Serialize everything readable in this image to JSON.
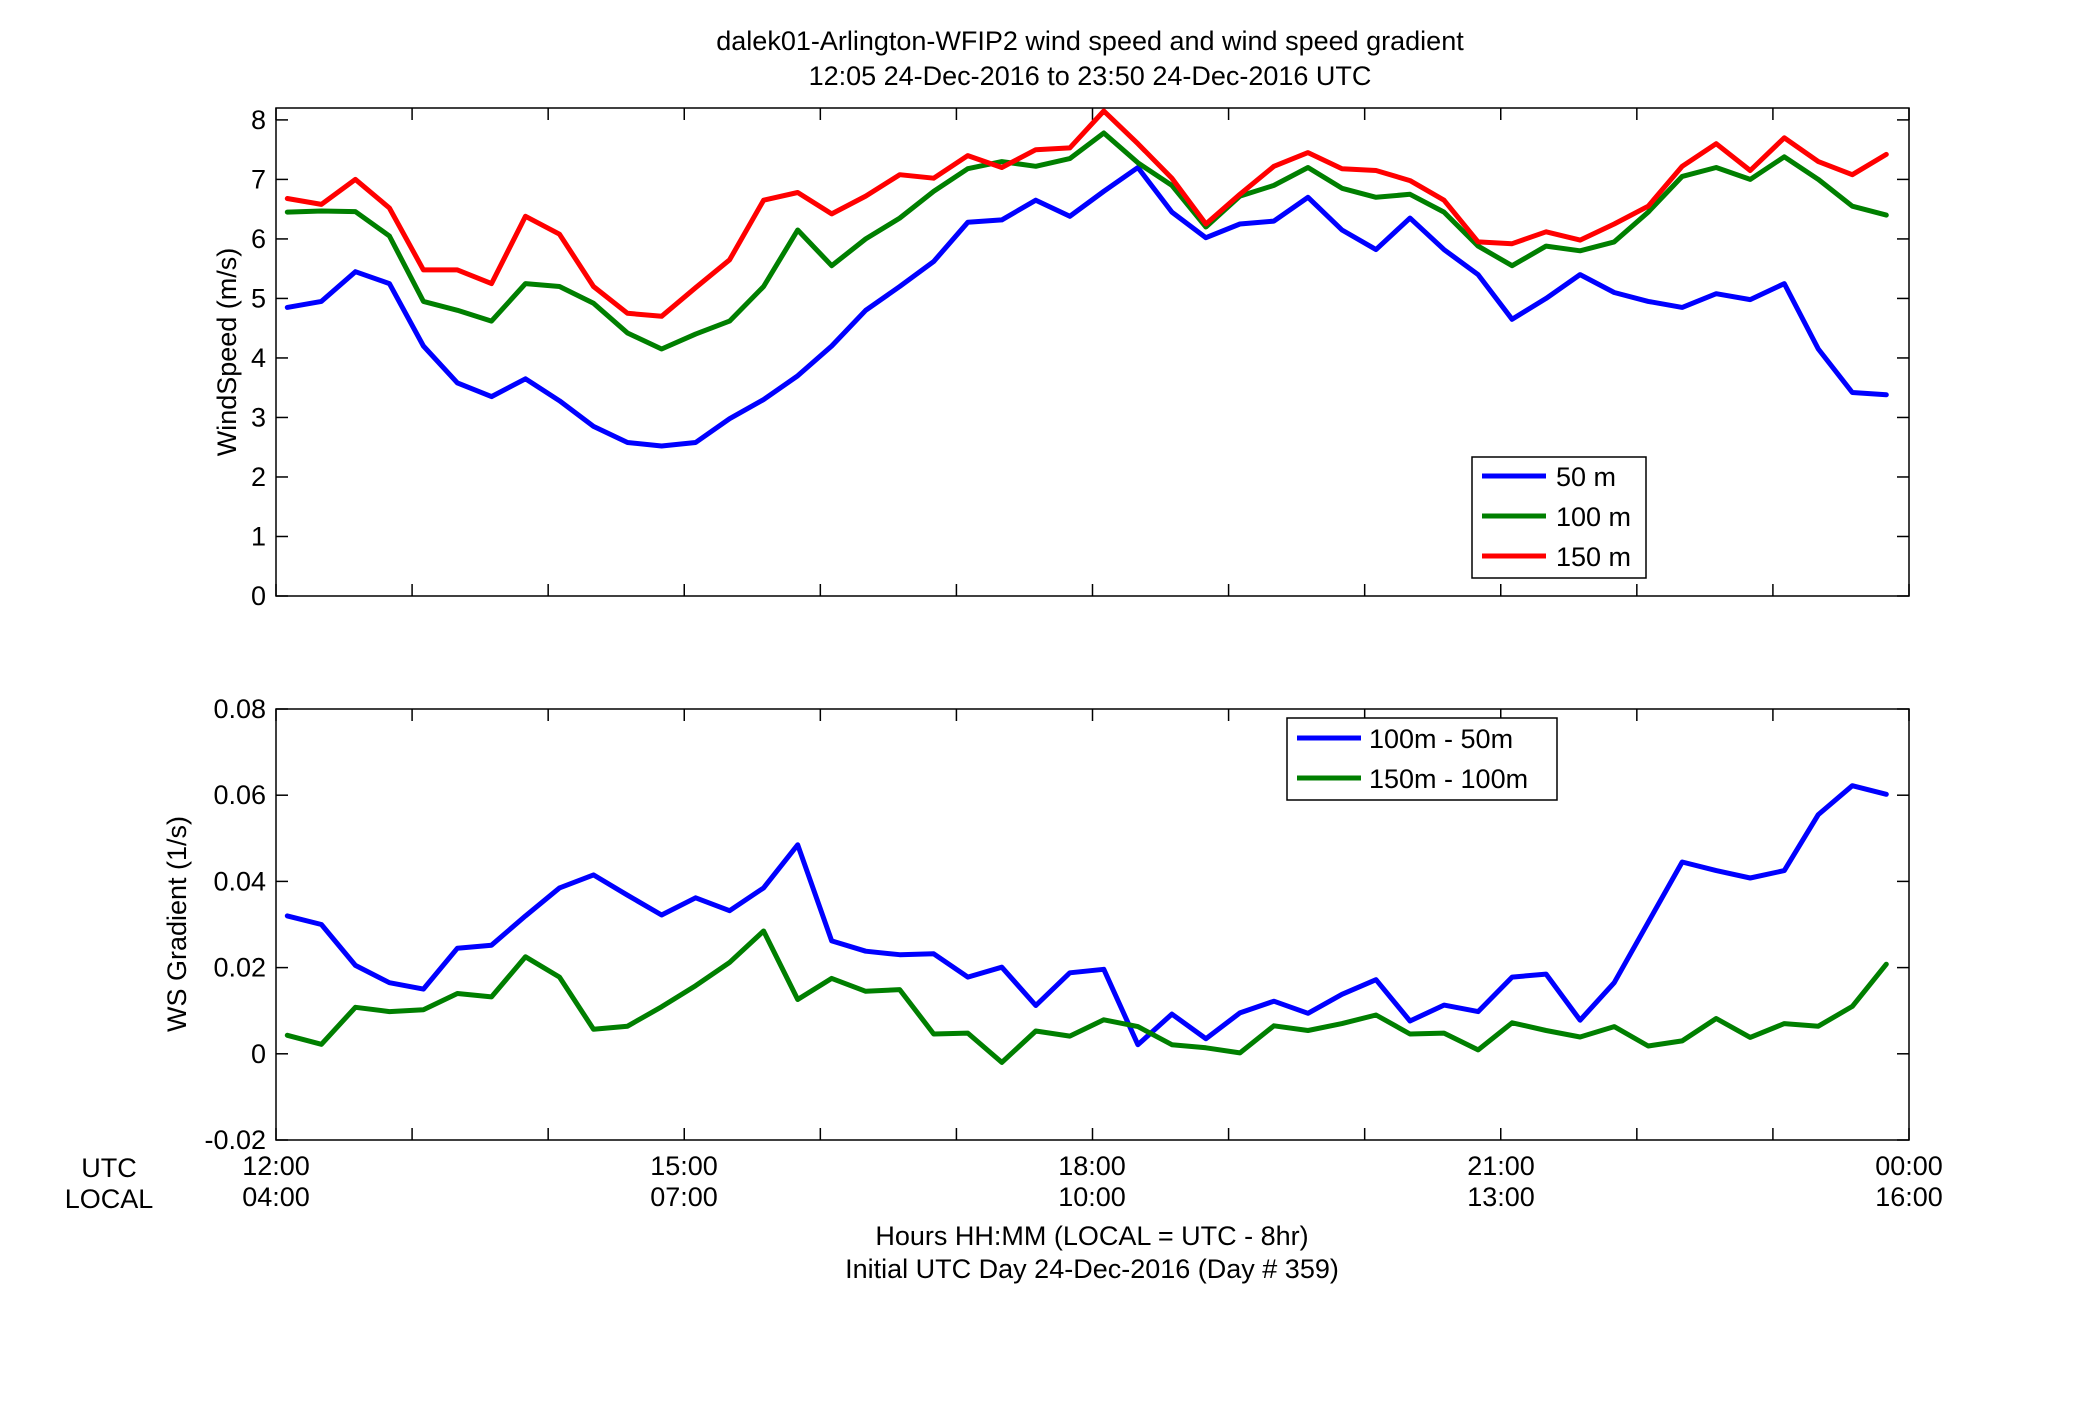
{
  "figure": {
    "title_line1": "dalek01-Arlington-WFIP2  wind speed and wind speed gradient",
    "title_line2": "12:05 24-Dec-2016 to 23:50 24-Dec-2016  UTC",
    "xlabel_line1": "Hours HH:MM  (LOCAL = UTC - 8hr)",
    "xlabel_line2": "Initial UTC Day 24-Dec-2016 (Day # 359)",
    "row_label_utc": "UTC",
    "row_label_local": "LOCAL",
    "utc_ticks": [
      "12:00",
      "15:00",
      "18:00",
      "21:00",
      "00:00"
    ],
    "local_ticks": [
      "04:00",
      "07:00",
      "10:00",
      "13:00",
      "16:00"
    ]
  },
  "chart_data": [
    {
      "type": "line",
      "ylabel": "WindSpeed (m/s)",
      "xlim": [
        12.0,
        24.0
      ],
      "ylim": [
        0,
        8.2
      ],
      "yticks": [
        0,
        1,
        2,
        3,
        4,
        5,
        6,
        7,
        8
      ],
      "xticks_hours": [
        12,
        13,
        14,
        15,
        16,
        17,
        18,
        19,
        20,
        21,
        22,
        23,
        24
      ],
      "grid": false,
      "legend_position": "lower-right",
      "x_time_utc": [
        "12:05",
        "12:20",
        "12:35",
        "12:50",
        "13:05",
        "13:20",
        "13:35",
        "13:50",
        "14:05",
        "14:20",
        "14:35",
        "14:50",
        "15:05",
        "15:20",
        "15:35",
        "15:50",
        "16:05",
        "16:20",
        "16:35",
        "16:50",
        "17:05",
        "17:20",
        "17:35",
        "17:50",
        "18:05",
        "18:20",
        "18:35",
        "18:50",
        "19:05",
        "19:20",
        "19:35",
        "19:50",
        "20:05",
        "20:20",
        "20:35",
        "20:50",
        "21:05",
        "21:20",
        "21:35",
        "21:50",
        "22:05",
        "22:20",
        "22:35",
        "22:50",
        "23:05",
        "23:20",
        "23:35",
        "23:50"
      ],
      "series": [
        {
          "name": "50 m",
          "color": "#0000ff",
          "values": [
            4.85,
            4.95,
            5.45,
            5.25,
            4.2,
            3.58,
            3.35,
            3.65,
            3.28,
            2.85,
            2.58,
            2.52,
            2.58,
            2.98,
            3.3,
            3.7,
            4.2,
            4.8,
            5.2,
            5.62,
            6.28,
            6.32,
            6.65,
            6.38,
            6.8,
            7.2,
            6.45,
            6.02,
            6.25,
            6.3,
            6.7,
            6.15,
            5.82,
            6.35,
            5.82,
            5.4,
            4.65,
            5.0,
            5.4,
            5.1,
            4.95,
            4.85,
            5.08,
            4.98,
            5.25,
            4.15,
            3.42,
            3.38
          ]
        },
        {
          "name": "100 m",
          "color": "#007f00",
          "values": [
            6.45,
            6.47,
            6.46,
            6.05,
            4.95,
            4.8,
            4.62,
            5.25,
            5.2,
            4.92,
            4.42,
            4.15,
            4.4,
            4.62,
            5.2,
            6.15,
            5.55,
            6.0,
            6.35,
            6.8,
            7.18,
            7.3,
            7.22,
            7.35,
            7.78,
            7.28,
            6.9,
            6.2,
            6.72,
            6.9,
            7.2,
            6.85,
            6.7,
            6.75,
            6.45,
            5.88,
            5.55,
            5.88,
            5.8,
            5.95,
            6.45,
            7.05,
            7.2,
            7.0,
            7.38,
            7.0,
            6.55,
            6.4
          ]
        },
        {
          "name": "150 m",
          "color": "#ff0000",
          "values": [
            6.68,
            6.58,
            7.0,
            6.52,
            5.48,
            5.48,
            5.25,
            6.38,
            6.08,
            5.2,
            4.75,
            4.7,
            5.18,
            5.65,
            6.65,
            6.78,
            6.42,
            6.72,
            7.08,
            7.02,
            7.4,
            7.2,
            7.5,
            7.53,
            8.15,
            7.6,
            7.02,
            6.25,
            6.75,
            7.22,
            7.45,
            7.18,
            7.15,
            6.98,
            6.65,
            5.95,
            5.92,
            6.12,
            5.98,
            6.25,
            6.55,
            7.22,
            7.6,
            7.15,
            7.7,
            7.3,
            7.08,
            7.42
          ]
        }
      ]
    },
    {
      "type": "line",
      "ylabel": "WS Gradient (1/s)",
      "xlim": [
        12.0,
        24.0
      ],
      "ylim": [
        -0.02,
        0.08
      ],
      "yticks": [
        -0.02,
        0,
        0.02,
        0.04,
        0.06,
        0.08
      ],
      "ytick_labels": [
        "-0.02",
        "0",
        "0.02",
        "0.04",
        "0.06",
        "0.08"
      ],
      "xticks_hours": [
        12,
        13,
        14,
        15,
        16,
        17,
        18,
        19,
        20,
        21,
        22,
        23,
        24
      ],
      "grid": false,
      "legend_position": "top-right",
      "x_time_utc": [
        "12:05",
        "12:20",
        "12:35",
        "12:50",
        "13:05",
        "13:20",
        "13:35",
        "13:50",
        "14:05",
        "14:20",
        "14:35",
        "14:50",
        "15:05",
        "15:20",
        "15:35",
        "15:50",
        "16:05",
        "16:20",
        "16:35",
        "16:50",
        "17:05",
        "17:20",
        "17:35",
        "17:50",
        "18:05",
        "18:20",
        "18:35",
        "18:50",
        "19:05",
        "19:20",
        "19:35",
        "19:50",
        "20:05",
        "20:20",
        "20:35",
        "20:50",
        "21:05",
        "21:20",
        "21:35",
        "21:50",
        "22:05",
        "22:20",
        "22:35",
        "22:50",
        "23:05",
        "23:20",
        "23:35",
        "23:50"
      ],
      "series": [
        {
          "name": "100m - 50m",
          "color": "#0000ff",
          "values": [
            0.032,
            0.03,
            0.0205,
            0.0165,
            0.015,
            0.0245,
            0.0252,
            0.032,
            0.0385,
            0.0415,
            0.0368,
            0.0322,
            0.0362,
            0.0332,
            0.0385,
            0.0485,
            0.0262,
            0.0238,
            0.023,
            0.0232,
            0.0178,
            0.0201,
            0.0112,
            0.0188,
            0.0196,
            0.0021,
            0.0092,
            0.0035,
            0.0095,
            0.0122,
            0.0094,
            0.0138,
            0.0172,
            0.0076,
            0.0113,
            0.0098,
            0.0178,
            0.0185,
            0.0078,
            0.0165,
            0.0305,
            0.0445,
            0.0425,
            0.0408,
            0.0425,
            0.0555,
            0.0622,
            0.0602
          ]
        },
        {
          "name": "150m - 100m",
          "color": "#007f00",
          "values": [
            0.0043,
            0.0022,
            0.0108,
            0.0098,
            0.0102,
            0.014,
            0.0132,
            0.0225,
            0.0178,
            0.0057,
            0.0064,
            0.0109,
            0.0158,
            0.0212,
            0.0285,
            0.0126,
            0.0175,
            0.0145,
            0.0149,
            0.0046,
            0.0048,
            -0.002,
            0.0053,
            0.0041,
            0.0079,
            0.0063,
            0.0021,
            0.0014,
            0.0002,
            0.0065,
            0.0054,
            0.007,
            0.009,
            0.0046,
            0.0048,
            0.0009,
            0.0072,
            0.0054,
            0.0039,
            0.0063,
            0.0018,
            0.003,
            0.0082,
            0.0038,
            0.007,
            0.0064,
            0.011,
            0.0208
          ]
        }
      ]
    }
  ]
}
